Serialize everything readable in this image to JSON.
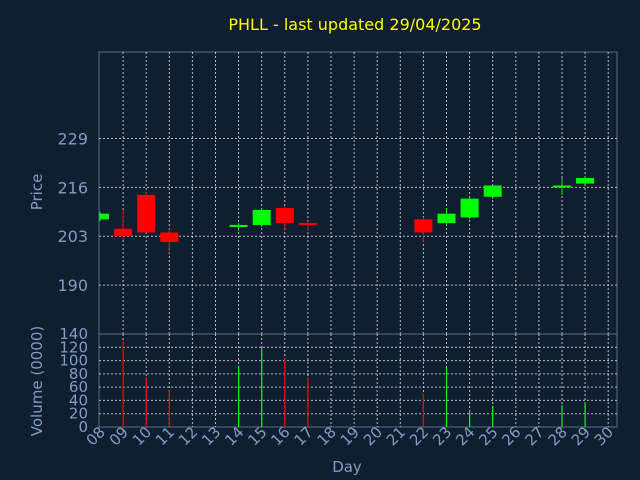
{
  "chart_data": {
    "type": "candlestick",
    "title": "PHLL - last updated 29/04/2025",
    "xlabel": "Day",
    "days": [
      "08",
      "09",
      "10",
      "11",
      "12",
      "13",
      "14",
      "15",
      "16",
      "17",
      "18",
      "19",
      "20",
      "21",
      "22",
      "23",
      "24",
      "25",
      "26",
      "27",
      "28",
      "29",
      "30"
    ],
    "price": {
      "ylabel": "Price",
      "ylim": [
        177,
        252
      ],
      "yticks": [
        190,
        203,
        216,
        229
      ],
      "up_color": "#00ff00",
      "down_color": "#ff0000",
      "candles": [
        {
          "day": "08",
          "open": 207.5,
          "close": 209.0,
          "high": 209.5,
          "low": 207.0
        },
        {
          "day": "09",
          "open": 205.0,
          "close": 203.0,
          "high": 210.0,
          "low": 202.0
        },
        {
          "day": "10",
          "open": 214.0,
          "close": 204.0,
          "high": 215.0,
          "low": 204.0
        },
        {
          "day": "11",
          "open": 204.0,
          "close": 201.5,
          "high": 205.0,
          "low": 198.5
        },
        {
          "day": "14",
          "open": 205.5,
          "close": 206.0,
          "high": 206.5,
          "low": 204.5
        },
        {
          "day": "15",
          "open": 206.0,
          "close": 210.0,
          "high": 210.5,
          "low": 205.5
        },
        {
          "day": "16",
          "open": 210.5,
          "close": 206.5,
          "high": 211.0,
          "low": 205.0
        },
        {
          "day": "17",
          "open": 206.5,
          "close": 206.0,
          "high": 207.0,
          "low": 204.5
        },
        {
          "day": "22",
          "open": 207.5,
          "close": 204.0,
          "high": 208.0,
          "low": 201.5
        },
        {
          "day": "23",
          "open": 206.5,
          "close": 209.0,
          "high": 210.5,
          "low": 206.0
        },
        {
          "day": "24",
          "open": 208.0,
          "close": 213.0,
          "high": 213.5,
          "low": 207.5
        },
        {
          "day": "25",
          "open": 213.5,
          "close": 216.5,
          "high": 216.5,
          "low": 213.0
        },
        {
          "day": "28",
          "open": 216.0,
          "close": 216.5,
          "high": 218.5,
          "low": 214.0
        },
        {
          "day": "29",
          "open": 217.0,
          "close": 218.5,
          "high": 219.0,
          "low": 216.5
        }
      ]
    },
    "volume": {
      "ylabel": "Volume (0000)",
      "ylim": [
        0,
        140
      ],
      "yticks": [
        0,
        20,
        40,
        60,
        80,
        100,
        120,
        140
      ],
      "bars": [
        {
          "day": "09",
          "value": 130,
          "color": "#ff0000"
        },
        {
          "day": "10",
          "value": 74,
          "color": "#ff0000"
        },
        {
          "day": "11",
          "value": 55,
          "color": "#ff0000"
        },
        {
          "day": "14",
          "value": 92,
          "color": "#00ff00"
        },
        {
          "day": "15",
          "value": 120,
          "color": "#00ff00"
        },
        {
          "day": "16",
          "value": 104,
          "color": "#ff0000"
        },
        {
          "day": "17",
          "value": 74,
          "color": "#ff0000"
        },
        {
          "day": "22",
          "value": 50,
          "color": "#ff0000"
        },
        {
          "day": "23",
          "value": 90,
          "color": "#00ff00"
        },
        {
          "day": "24",
          "value": 24,
          "color": "#00ff00"
        },
        {
          "day": "25",
          "value": 32,
          "color": "#00ff00"
        },
        {
          "day": "28",
          "value": 33,
          "color": "#00ff00"
        },
        {
          "day": "29",
          "value": 36,
          "color": "#00ff00"
        }
      ]
    },
    "grid": true,
    "background": "#0f1e30"
  }
}
